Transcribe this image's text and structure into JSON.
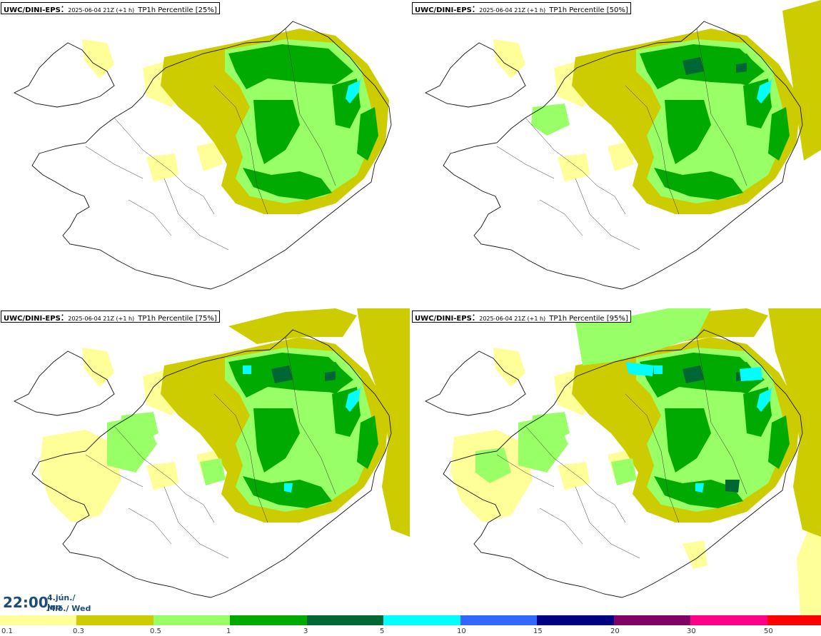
{
  "panels": [
    {
      "model": "UWC/DINI-EPS",
      "run": "2025-06-04 21Z (+1 h)",
      "param": "TP1h Percentile [25%]",
      "level": 0
    },
    {
      "model": "UWC/DINI-EPS",
      "run": "2025-06-04 21Z (+1 h)",
      "param": "TP1h Percentile [50%]",
      "level": 1
    },
    {
      "model": "UWC/DINI-EPS",
      "run": "2025-06-04 21Z (+1 h)",
      "param": "TP1h Percentile [75%]",
      "level": 2
    },
    {
      "model": "UWC/DINI-EPS",
      "run": "2025-06-04 21Z (+1 h)",
      "param": "TP1h Percentile [95%]",
      "level": 3
    }
  ],
  "time": {
    "clock": "22:00",
    "date": "4.jún./ Jun",
    "day": "Mið./ Wed"
  },
  "legend": {
    "colors": [
      "#ffff99",
      "#cccc00",
      "#99ff66",
      "#00aa00",
      "#006633",
      "#00ffff",
      "#3366ff",
      "#000080",
      "#800066",
      "#ff0088",
      "#ff0000"
    ],
    "labels": [
      "0.1",
      "0.3",
      "0.5",
      "1",
      "3",
      "5",
      "10",
      "15",
      "20",
      "30",
      "50"
    ]
  }
}
